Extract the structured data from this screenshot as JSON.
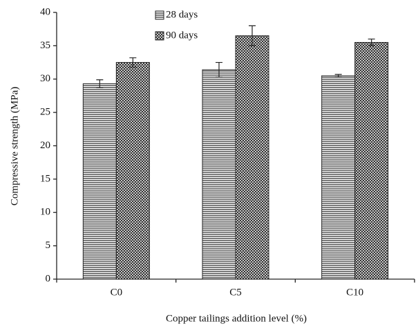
{
  "chart_data": {
    "type": "bar",
    "x_label": "Copper tailings addition level (%)",
    "y_label": "Compressive strength (MPa)",
    "categories": [
      "C0",
      "C5",
      "C10"
    ],
    "series": [
      {
        "name": "28 days",
        "color": "#222222",
        "pattern": "horizontal",
        "values": [
          29.3,
          31.4,
          30.5
        ],
        "errors": [
          0.6,
          1.1,
          0.2
        ]
      },
      {
        "name": "90 days",
        "color": "#222222",
        "pattern": "crosshatch",
        "values": [
          32.5,
          36.5,
          35.5
        ],
        "errors": [
          0.7,
          1.5,
          0.5
        ]
      }
    ],
    "ylim": [
      0,
      40
    ],
    "yticks": [
      0,
      5,
      10,
      15,
      20,
      25,
      30,
      35,
      40
    ],
    "grid": false,
    "legend": "top-left"
  }
}
